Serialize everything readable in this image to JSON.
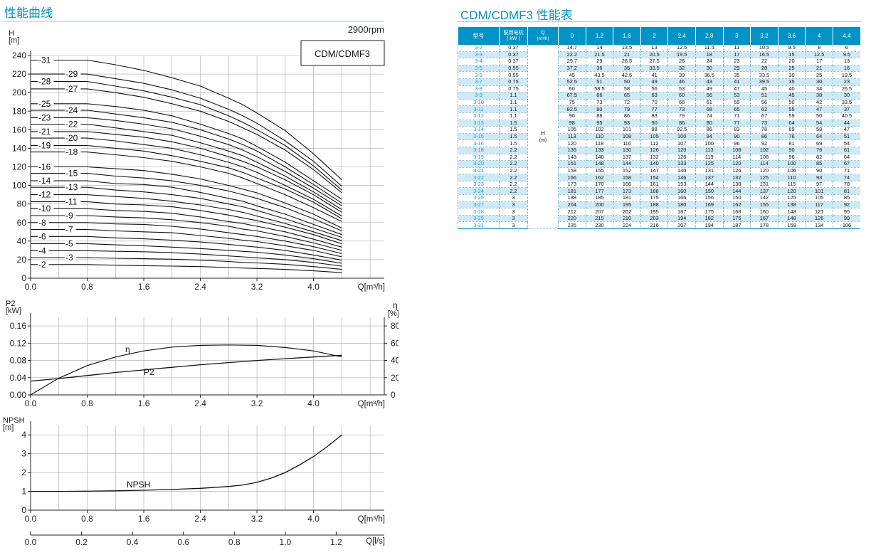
{
  "left": {
    "section_title": "性能曲线",
    "speed": "2900rpm",
    "model_label": "CDM/CDMF3"
  },
  "right": {
    "section_title": "CDM/CDMF3 性能表",
    "col_headers": {
      "model": "型号",
      "motor": "配用电机",
      "motor_unit": "( kW )",
      "q": "Q",
      "q_unit": "(m³/h)"
    },
    "h_label": "H",
    "h_unit": "(m)",
    "q_values": [
      "0",
      "1.2",
      "1.6",
      "2",
      "2.4",
      "2.8",
      "3",
      "3.2",
      "3.6",
      "4",
      "4.4"
    ],
    "rows": [
      {
        "model": "3-2",
        "power": "0.37",
        "h": [
          "14.7",
          "14",
          "13.5",
          "13",
          "12.5",
          "11.5",
          "11",
          "10.5",
          "9.5",
          "8",
          "6"
        ]
      },
      {
        "model": "3-3",
        "power": "0.37",
        "h": [
          "22.2",
          "21.5",
          "21",
          "20.5",
          "19.5",
          "18",
          "17",
          "16.5",
          "15",
          "12.5",
          "9.5"
        ]
      },
      {
        "model": "3-4",
        "power": "0.37",
        "h": [
          "29.7",
          "29",
          "28.5",
          "27.5",
          "26",
          "24",
          "23",
          "22",
          "20",
          "17",
          "13"
        ]
      },
      {
        "model": "3-5",
        "power": "0.55",
        "h": [
          "37.2",
          "36",
          "35",
          "33.5",
          "32",
          "30",
          "29",
          "28",
          "25",
          "21",
          "16"
        ]
      },
      {
        "model": "3-6",
        "power": "0.55",
        "h": [
          "45",
          "43.5",
          "42.5",
          "41",
          "39",
          "36.5",
          "35",
          "33.5",
          "30",
          "25",
          "19.5"
        ]
      },
      {
        "model": "3-7",
        "power": "0.75",
        "h": [
          "52.5",
          "51",
          "50",
          "49",
          "46",
          "43",
          "41",
          "39.5",
          "35",
          "30",
          "23"
        ]
      },
      {
        "model": "3-8",
        "power": "0.75",
        "h": [
          "60",
          "58.5",
          "58",
          "56",
          "53",
          "49",
          "47",
          "45",
          "40",
          "34",
          "26.5"
        ]
      },
      {
        "model": "3-9",
        "power": "1.1",
        "h": [
          "67.5",
          "66",
          "65",
          "63",
          "60",
          "56",
          "53",
          "51",
          "45",
          "38",
          "30"
        ]
      },
      {
        "model": "3-10",
        "power": "1.1",
        "h": [
          "75",
          "73",
          "72",
          "70",
          "66",
          "61",
          "59",
          "56",
          "50",
          "42",
          "33.5"
        ]
      },
      {
        "model": "3-11",
        "power": "1.1",
        "h": [
          "82.5",
          "80",
          "79",
          "77",
          "73",
          "68",
          "65",
          "62",
          "55",
          "47",
          "37"
        ]
      },
      {
        "model": "3-12",
        "power": "1.1",
        "h": [
          "90",
          "88",
          "86",
          "83",
          "79",
          "74",
          "71",
          "67",
          "59",
          "50",
          "40.5"
        ]
      },
      {
        "model": "3-13",
        "power": "1.5",
        "h": [
          "98",
          "95",
          "93",
          "90",
          "86",
          "80",
          "77",
          "73",
          "64",
          "54",
          "44"
        ]
      },
      {
        "model": "3-14",
        "power": "1.5",
        "h": [
          "105",
          "102",
          "101",
          "98",
          "92.5",
          "86",
          "83",
          "78",
          "69",
          "58",
          "47"
        ]
      },
      {
        "model": "3-15",
        "power": "1.5",
        "h": [
          "113",
          "110",
          "108",
          "105",
          "100",
          "94",
          "90",
          "86",
          "76",
          "64",
          "51"
        ]
      },
      {
        "model": "3-16",
        "power": "1.5",
        "h": [
          "120",
          "118",
          "116",
          "112",
          "107",
          "100",
          "96",
          "92",
          "81",
          "69",
          "54"
        ]
      },
      {
        "model": "3-18",
        "power": "2.2",
        "h": [
          "136",
          "133",
          "130",
          "126",
          "120",
          "113",
          "108",
          "102",
          "90",
          "76",
          "61"
        ]
      },
      {
        "model": "3-19",
        "power": "2.2",
        "h": [
          "143",
          "140",
          "137",
          "132",
          "126",
          "119",
          "114",
          "108",
          "96",
          "82",
          "64"
        ]
      },
      {
        "model": "3-20",
        "power": "2.2",
        "h": [
          "151",
          "148",
          "144",
          "140",
          "133",
          "125",
          "120",
          "114",
          "100",
          "85",
          "67"
        ]
      },
      {
        "model": "3-21",
        "power": "2.2",
        "h": [
          "158",
          "155",
          "152",
          "147",
          "140",
          "131",
          "126",
          "120",
          "106",
          "90",
          "71"
        ]
      },
      {
        "model": "3-22",
        "power": "2.2",
        "h": [
          "166",
          "162",
          "158",
          "154",
          "146",
          "137",
          "132",
          "125",
          "110",
          "93",
          "74"
        ]
      },
      {
        "model": "3-23",
        "power": "2.2",
        "h": [
          "173",
          "170",
          "166",
          "161",
          "153",
          "144",
          "138",
          "131",
          "115",
          "97",
          "78"
        ]
      },
      {
        "model": "3-24",
        "power": "2.2",
        "h": [
          "181",
          "177",
          "173",
          "168",
          "160",
          "150",
          "144",
          "137",
          "120",
          "101",
          "81"
        ]
      },
      {
        "model": "3-25",
        "power": "3",
        "h": [
          "188",
          "185",
          "181",
          "175",
          "166",
          "156",
          "150",
          "142",
          "125",
          "105",
          "85"
        ]
      },
      {
        "model": "3-27",
        "power": "3",
        "h": [
          "204",
          "200",
          "195",
          "188",
          "180",
          "169",
          "162",
          "155",
          "138",
          "117",
          "92"
        ]
      },
      {
        "model": "3-28",
        "power": "3",
        "h": [
          "212",
          "207",
          "202",
          "195",
          "187",
          "175",
          "168",
          "160",
          "143",
          "121",
          "95"
        ]
      },
      {
        "model": "3-29",
        "power": "3",
        "h": [
          "220",
          "215",
          "210",
          "203",
          "194",
          "182",
          "175",
          "167",
          "148",
          "126",
          "99"
        ]
      },
      {
        "model": "3-31",
        "power": "3",
        "h": [
          "235",
          "230",
          "224",
          "216",
          "207",
          "194",
          "187",
          "178",
          "159",
          "134",
          "106"
        ]
      }
    ]
  },
  "chart_data": [
    {
      "type": "line",
      "title": "",
      "ylabel": "H",
      "yunit": "[m]",
      "xlabel": "Q[m³/h]",
      "xlim": [
        0,
        5.0
      ],
      "ylim": [
        0,
        240
      ],
      "xticks": [
        "0.0",
        "0.8",
        "1.6",
        "2.4",
        "3.2",
        "4.0"
      ],
      "yticks": [
        "0",
        "20",
        "40",
        "60",
        "80",
        "100",
        "120",
        "140",
        "160",
        "180",
        "200",
        "220",
        "240"
      ],
      "x": [
        0,
        1.2,
        1.6,
        2.0,
        2.4,
        2.8,
        3.0,
        3.2,
        3.6,
        4.0,
        4.4
      ],
      "grid": true,
      "curve_labels": [
        "-2",
        "-3",
        "-4",
        "-5",
        "-6",
        "-7",
        "-8",
        "-9",
        "-10",
        "-11",
        "-12",
        "-13",
        "-14",
        "-15",
        "-16",
        "-18",
        "-19",
        "-20",
        "-21",
        "-22",
        "-23",
        "-24",
        "-25",
        "-27",
        "-28",
        "-29",
        "-31"
      ]
    },
    {
      "type": "line",
      "ylabel": "P2",
      "yunit": "[kW]",
      "y2label": "η",
      "y2unit": "[%]",
      "xlabel": "Q[m³/h]",
      "xlim": [
        0,
        5.0
      ],
      "ylim": [
        0,
        0.18
      ],
      "y2lim": [
        0,
        90
      ],
      "xticks": [
        "0.0",
        "0.8",
        "1.6",
        "2.4",
        "3.2",
        "4.0"
      ],
      "yticks": [
        "0.00",
        "0.04",
        "0.08",
        "0.12",
        "0.16"
      ],
      "y2ticks": [
        "0",
        "20",
        "40",
        "60",
        "80"
      ],
      "grid": true,
      "series": [
        {
          "name": "η",
          "axis": "right",
          "x": [
            0,
            0.4,
            0.8,
            1.2,
            1.6,
            2.0,
            2.4,
            2.8,
            3.2,
            3.6,
            4.0,
            4.4
          ],
          "values": [
            0,
            19.5,
            34,
            44,
            51,
            55.5,
            57.5,
            58,
            57.5,
            55,
            51,
            44
          ]
        },
        {
          "name": "P2",
          "axis": "left",
          "x": [
            0,
            0.4,
            0.8,
            1.2,
            1.6,
            2.0,
            2.4,
            2.8,
            3.2,
            3.6,
            4.0,
            4.4
          ],
          "values": [
            0.032,
            0.038,
            0.045,
            0.052,
            0.058,
            0.064,
            0.07,
            0.075,
            0.08,
            0.084,
            0.088,
            0.092
          ]
        }
      ]
    },
    {
      "type": "line",
      "ylabel": "NPSH",
      "yunit": "[m]",
      "xlabel": "Q[m³/h]",
      "x2label": "Q[l/s]",
      "xlim": [
        0,
        5.0
      ],
      "ylim": [
        0,
        4.5
      ],
      "xticks": [
        "0.0",
        "0.8",
        "1.6",
        "2.4",
        "3.2",
        "4.0"
      ],
      "yticks": [
        "0",
        "1",
        "2",
        "3",
        "4"
      ],
      "x2ticks": [
        "0.0",
        "0.2",
        "0.4",
        "0.6",
        "0.8",
        "1.0",
        "1.2"
      ],
      "grid": true,
      "series": [
        {
          "name": "NPSH",
          "x": [
            0,
            0.4,
            0.8,
            1.2,
            1.6,
            2.0,
            2.4,
            2.8,
            3.0,
            3.2,
            3.4,
            3.6,
            3.8,
            4.0,
            4.2,
            4.4
          ],
          "values": [
            1.0,
            1.0,
            1.01,
            1.03,
            1.06,
            1.1,
            1.16,
            1.26,
            1.34,
            1.48,
            1.7,
            2.0,
            2.4,
            2.85,
            3.4,
            4.0
          ]
        }
      ]
    }
  ]
}
